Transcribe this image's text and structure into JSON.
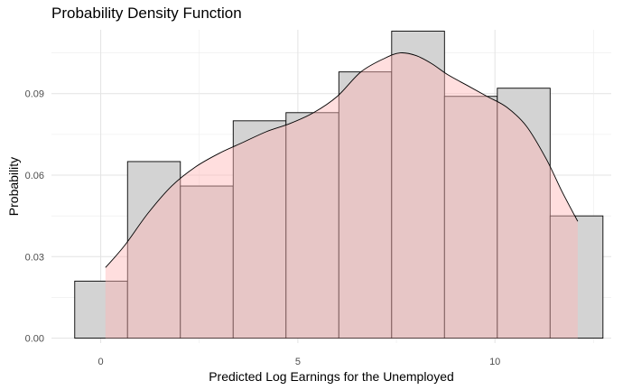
{
  "chart_data": {
    "type": "bar",
    "title": "Probability Density Function",
    "xlabel": "Predicted Log Earnings for the Unemployed",
    "ylabel": "Probability",
    "xlim": [
      -1.25,
      12.95
    ],
    "ylim": [
      -0.0018,
      0.1135
    ],
    "x_ticks": [
      {
        "value": 0,
        "label": "0"
      },
      {
        "value": 5,
        "label": "5"
      },
      {
        "value": 10,
        "label": "10"
      }
    ],
    "y_ticks": [
      {
        "value": 0.0,
        "label": "0.00"
      },
      {
        "value": 0.03,
        "label": "0.03"
      },
      {
        "value": 0.06,
        "label": "0.06"
      },
      {
        "value": 0.09,
        "label": "0.09"
      }
    ],
    "grid": true,
    "histogram": {
      "bin_edges": [
        -0.66,
        0.68,
        2.02,
        3.36,
        4.7,
        6.04,
        7.38,
        8.72,
        10.06,
        11.4,
        12.74
      ],
      "probabilities": [
        0.021,
        0.065,
        0.056,
        0.08,
        0.083,
        0.098,
        0.113,
        0.089,
        0.092,
        0.045
      ],
      "fill": "#d3d3d3",
      "stroke": "#000000"
    },
    "density": {
      "x": [
        0.12,
        0.6,
        1.2,
        1.8,
        2.4,
        3.0,
        3.6,
        4.2,
        4.8,
        5.4,
        6.0,
        6.6,
        7.2,
        7.6,
        8.0,
        8.4,
        8.8,
        9.3,
        9.8,
        10.3,
        10.8,
        11.3,
        11.7,
        12.1
      ],
      "y": [
        0.026,
        0.034,
        0.046,
        0.056,
        0.063,
        0.068,
        0.072,
        0.076,
        0.079,
        0.083,
        0.089,
        0.098,
        0.103,
        0.105,
        0.104,
        0.101,
        0.097,
        0.093,
        0.089,
        0.085,
        0.078,
        0.066,
        0.054,
        0.043
      ],
      "fill": "#ffb6b6",
      "fill_opacity": 0.45,
      "stroke": "#000000"
    }
  }
}
